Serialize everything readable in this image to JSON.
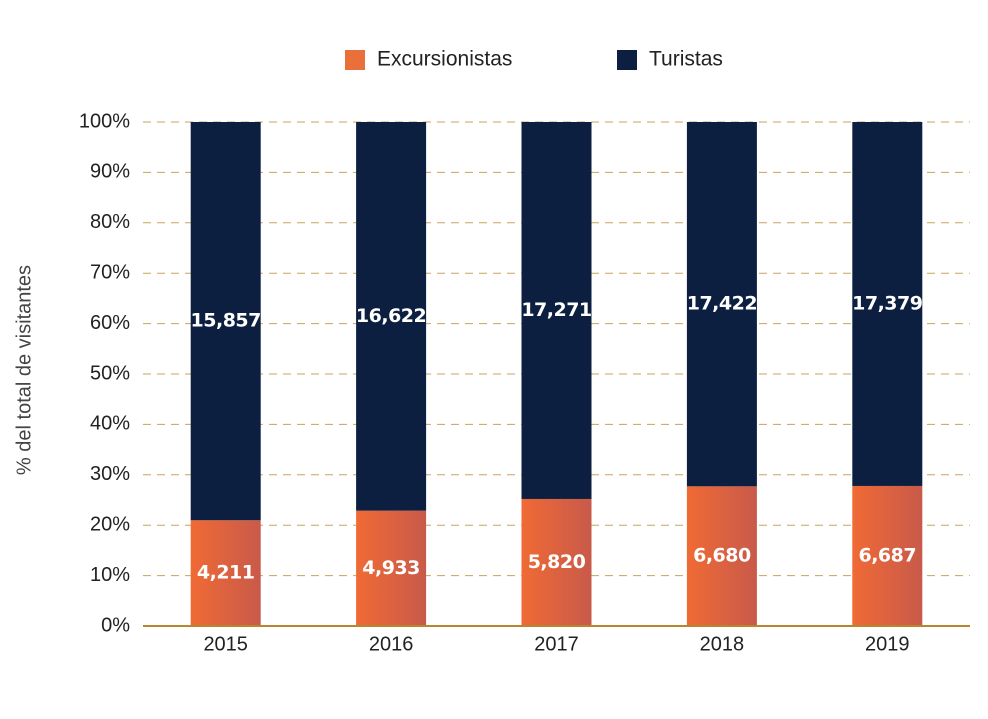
{
  "chart_data": {
    "type": "bar",
    "stacking": "percent",
    "y_label": "% del total de visitantes",
    "categories": [
      "2015",
      "2016",
      "2017",
      "2018",
      "2019"
    ],
    "series": [
      {
        "name": "Excursionistas",
        "color": "#e9703a",
        "values": [
          4211,
          4933,
          5820,
          6680,
          6687
        ],
        "value_labels": [
          "4,211",
          "4,933",
          "5,820",
          "6,680",
          "6,687"
        ]
      },
      {
        "name": "Turistas",
        "color": "#0d1f40",
        "values": [
          15857,
          16622,
          17271,
          17422,
          17379
        ],
        "value_labels": [
          "15,857",
          "16,622",
          "17,271",
          "17,422",
          "17,379"
        ]
      }
    ],
    "ylim": [
      0,
      100
    ],
    "yticks": [
      {
        "value": 0,
        "label": "0%"
      },
      {
        "value": 10,
        "label": "10%"
      },
      {
        "value": 20,
        "label": "20%"
      },
      {
        "value": 30,
        "label": "30%"
      },
      {
        "value": 40,
        "label": "40%"
      },
      {
        "value": 50,
        "label": "50%"
      },
      {
        "value": 60,
        "label": "60%"
      },
      {
        "value": 70,
        "label": "70%"
      },
      {
        "value": 80,
        "label": "80%"
      },
      {
        "value": 90,
        "label": "90%"
      },
      {
        "value": 100,
        "label": "100%"
      }
    ],
    "grid": true,
    "legend": "top"
  }
}
